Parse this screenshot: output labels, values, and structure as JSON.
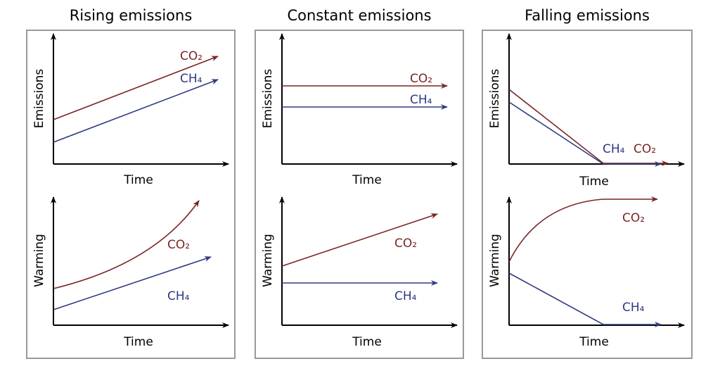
{
  "panels": [
    {
      "title": "Rising emissions"
    },
    {
      "title": "Constant emissions"
    },
    {
      "title": "Falling emissions"
    }
  ],
  "axes": {
    "emissions": "Emissions",
    "warming": "Warming",
    "time": "Time"
  },
  "series": {
    "co2": "CO₂",
    "ch4": "CH₄"
  },
  "colors": {
    "co2": "#7a2525",
    "ch4": "#2e3a80",
    "frame": "#999999"
  }
}
